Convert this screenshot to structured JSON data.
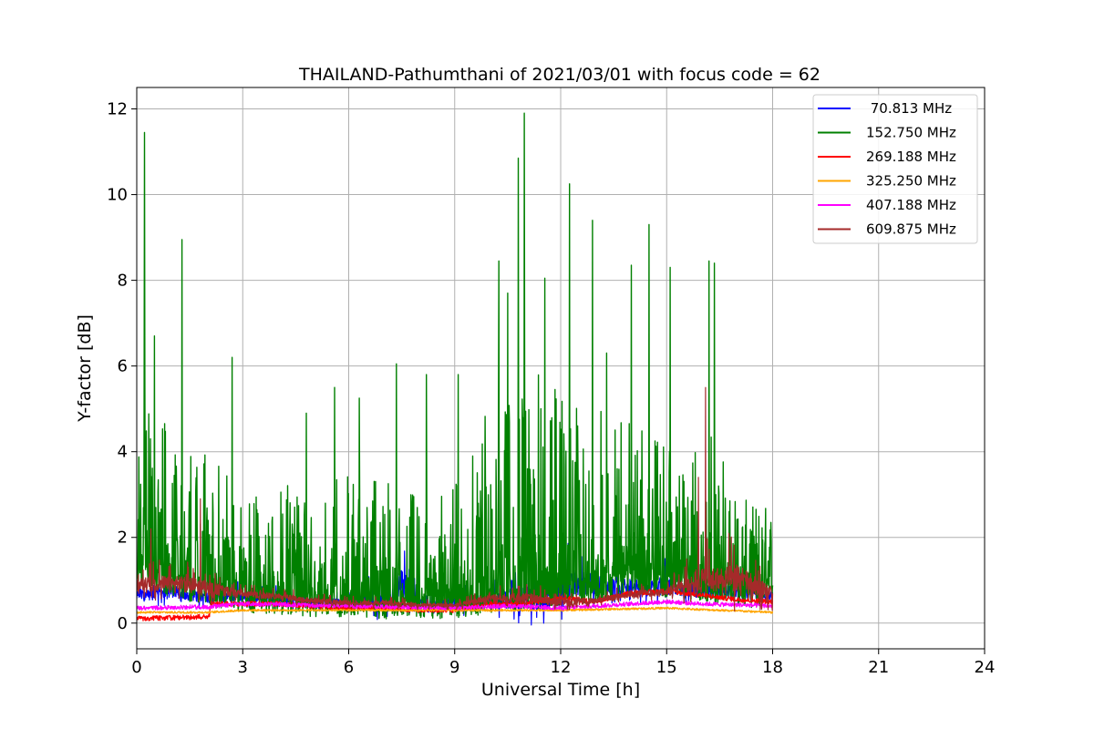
{
  "chart_data": {
    "type": "line",
    "title": "THAILAND-Pathumthani of 2021/03/01 with focus code = 62",
    "xlabel": "Universal Time [h]",
    "ylabel": "Y-factor [dB]",
    "xlim": [
      0,
      24
    ],
    "ylim": [
      -0.6,
      12.5
    ],
    "xticks": [
      0,
      3,
      6,
      9,
      12,
      15,
      18,
      21,
      24
    ],
    "xtick_labels": [
      "0",
      "3",
      "6",
      "9",
      "12",
      "15",
      "18",
      "21",
      "24"
    ],
    "yticks": [
      0,
      2,
      4,
      6,
      8,
      10,
      12
    ],
    "ytick_labels": [
      "0",
      "2",
      "4",
      "6",
      "8",
      "10",
      "12"
    ],
    "grid": true,
    "legend_position": "top-right",
    "series": [
      {
        "name": "70.813 MHz",
        "label": " 70.813 MHz",
        "color": "#0000ff",
        "base": [
          [
            0,
            0.6
          ],
          [
            1,
            0.7
          ],
          [
            2,
            0.55
          ],
          [
            3,
            0.6
          ],
          [
            4,
            0.55
          ],
          [
            5,
            0.45
          ],
          [
            6,
            0.45
          ],
          [
            7,
            0.4
          ],
          [
            7.5,
            0.8
          ],
          [
            8,
            0.45
          ],
          [
            9,
            0.4
          ],
          [
            10,
            0.5
          ],
          [
            11,
            0.5
          ],
          [
            12,
            0.6
          ],
          [
            12.5,
            0.9
          ],
          [
            13,
            0.8
          ],
          [
            14,
            0.8
          ],
          [
            15,
            0.8
          ],
          [
            16,
            0.7
          ],
          [
            17,
            0.7
          ],
          [
            18,
            0.6
          ]
        ],
        "amp": [
          [
            0,
            0.5
          ],
          [
            3,
            0.4
          ],
          [
            6,
            0.3
          ],
          [
            7.5,
            1.2
          ],
          [
            8,
            0.3
          ],
          [
            10,
            0.6
          ],
          [
            12,
            1.4
          ],
          [
            12.5,
            1.0
          ],
          [
            14,
            0.6
          ],
          [
            15,
            0.8
          ],
          [
            16,
            0.5
          ],
          [
            18,
            0.4
          ]
        ]
      },
      {
        "name": "152.750 MHz",
        "label": "152.750 MHz",
        "color": "#008000",
        "base": [
          [
            0,
            1.4
          ],
          [
            1,
            1.1
          ],
          [
            2,
            0.9
          ],
          [
            3,
            0.75
          ],
          [
            4,
            0.7
          ],
          [
            5,
            0.65
          ],
          [
            6,
            0.65
          ],
          [
            7,
            0.6
          ],
          [
            8,
            0.6
          ],
          [
            9,
            0.6
          ],
          [
            10,
            0.7
          ],
          [
            11,
            0.8
          ],
          [
            12,
            0.9
          ],
          [
            13,
            1.0
          ],
          [
            14,
            1.2
          ],
          [
            15,
            1.1
          ],
          [
            16,
            1.0
          ],
          [
            17,
            0.9
          ],
          [
            18,
            0.8
          ]
        ],
        "amp": [
          [
            0,
            4.5
          ],
          [
            1,
            3.5
          ],
          [
            2,
            3.0
          ],
          [
            3,
            2.5
          ],
          [
            4,
            2.6
          ],
          [
            5,
            2.6
          ],
          [
            6,
            2.8
          ],
          [
            7,
            2.7
          ],
          [
            8,
            2.6
          ],
          [
            9,
            2.7
          ],
          [
            10,
            4.5
          ],
          [
            11,
            5.5
          ],
          [
            12,
            4.5
          ],
          [
            13,
            4.0
          ],
          [
            14,
            3.5
          ],
          [
            15,
            3.0
          ],
          [
            16,
            4.5
          ],
          [
            17,
            2.0
          ],
          [
            18,
            2.0
          ]
        ],
        "spikes": [
          [
            0.22,
            11.45
          ],
          [
            1.28,
            8.95
          ],
          [
            2.7,
            6.2
          ],
          [
            7.35,
            6.05
          ],
          [
            10.25,
            8.45
          ],
          [
            10.8,
            10.85
          ],
          [
            10.97,
            11.9
          ],
          [
            11.55,
            8.05
          ],
          [
            12.25,
            10.25
          ],
          [
            12.9,
            9.4
          ],
          [
            14.0,
            8.35
          ],
          [
            14.5,
            9.3
          ],
          [
            15.1,
            8.3
          ],
          [
            16.2,
            8.45
          ],
          [
            16.35,
            8.4
          ],
          [
            0.5,
            6.7
          ],
          [
            4.8,
            4.9
          ],
          [
            5.6,
            5.5
          ],
          [
            6.3,
            5.25
          ],
          [
            8.2,
            5.8
          ],
          [
            9.1,
            5.8
          ],
          [
            10.5,
            7.7
          ],
          [
            13.3,
            6.3
          ]
        ]
      },
      {
        "name": "269.188 MHz",
        "label": "269.188 MHz",
        "color": "#ff0000",
        "base": [
          [
            0,
            0.1
          ],
          [
            2.05,
            0.15
          ],
          [
            2.1,
            0.45
          ],
          [
            4,
            0.45
          ],
          [
            6,
            0.35
          ],
          [
            7,
            0.35
          ],
          [
            8,
            0.3
          ],
          [
            9,
            0.3
          ],
          [
            10,
            0.45
          ],
          [
            11,
            0.45
          ],
          [
            12,
            0.6
          ],
          [
            13,
            0.5
          ],
          [
            14,
            0.7
          ],
          [
            15,
            0.75
          ],
          [
            16,
            0.65
          ],
          [
            17,
            0.55
          ],
          [
            18,
            0.5
          ]
        ],
        "amp": [
          [
            0,
            0.12
          ],
          [
            18,
            0.12
          ]
        ]
      },
      {
        "name": "325.250 MHz",
        "label": "325.250 MHz",
        "color": "#ffa500",
        "base": [
          [
            0,
            0.25
          ],
          [
            2,
            0.25
          ],
          [
            3,
            0.3
          ],
          [
            6,
            0.3
          ],
          [
            9,
            0.3
          ],
          [
            12,
            0.3
          ],
          [
            15,
            0.35
          ],
          [
            18,
            0.25
          ]
        ],
        "amp": [
          [
            0,
            0.05
          ],
          [
            18,
            0.05
          ]
        ]
      },
      {
        "name": "407.188 MHz",
        "label": "407.188 MHz",
        "color": "#ff00ff",
        "base": [
          [
            0,
            0.35
          ],
          [
            2,
            0.38
          ],
          [
            3,
            0.45
          ],
          [
            6,
            0.4
          ],
          [
            9,
            0.35
          ],
          [
            10.5,
            0.4
          ],
          [
            12,
            0.35
          ],
          [
            14,
            0.45
          ],
          [
            15,
            0.5
          ],
          [
            16,
            0.45
          ],
          [
            18,
            0.4
          ]
        ],
        "amp": [
          [
            0,
            0.1
          ],
          [
            18,
            0.1
          ]
        ]
      },
      {
        "name": "609.875 MHz",
        "label": "609.875 MHz",
        "color": "#a52a2a",
        "base": [
          [
            0,
            0.8
          ],
          [
            1,
            0.9
          ],
          [
            2,
            0.75
          ],
          [
            3,
            0.65
          ],
          [
            4,
            0.6
          ],
          [
            5,
            0.5
          ],
          [
            6,
            0.45
          ],
          [
            7,
            0.45
          ],
          [
            8,
            0.4
          ],
          [
            9,
            0.4
          ],
          [
            10,
            0.55
          ],
          [
            11,
            0.55
          ],
          [
            12,
            0.45
          ],
          [
            13,
            0.5
          ],
          [
            14,
            0.65
          ],
          [
            15,
            0.7
          ],
          [
            16,
            0.9
          ],
          [
            17,
            0.9
          ],
          [
            18,
            0.6
          ]
        ],
        "amp": [
          [
            0,
            0.6
          ],
          [
            2,
            0.6
          ],
          [
            3,
            0.25
          ],
          [
            9,
            0.15
          ],
          [
            11,
            0.4
          ],
          [
            13,
            0.2
          ],
          [
            15,
            0.3
          ],
          [
            16,
            1.0
          ],
          [
            17,
            1.2
          ],
          [
            18,
            0.6
          ]
        ],
        "spikes": [
          [
            1.8,
            2.9
          ],
          [
            16.1,
            5.5
          ],
          [
            15.9,
            3.4
          ],
          [
            0.4,
            2.2
          ]
        ]
      }
    ]
  }
}
